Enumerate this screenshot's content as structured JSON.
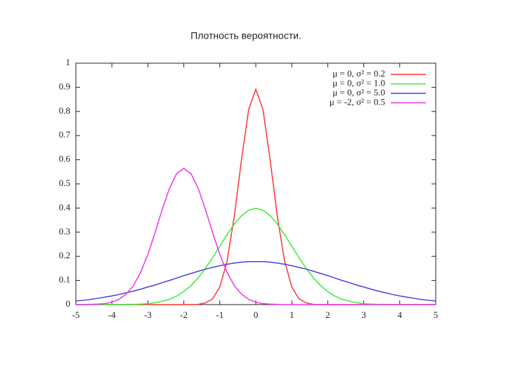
{
  "chart_data": {
    "type": "line",
    "title": "Плотность вероятности.",
    "x": [
      -5,
      -4.8,
      -4.6,
      -4.4,
      -4.2,
      -4,
      -3.8,
      -3.6,
      -3.4,
      -3.2,
      -3,
      -2.8,
      -2.6,
      -2.4,
      -2.2,
      -2,
      -1.8,
      -1.6,
      -1.4,
      -1.2,
      -1,
      -0.8,
      -0.6,
      -0.4,
      -0.2,
      0,
      0.2,
      0.4,
      0.6,
      0.8,
      1,
      1.2,
      1.4,
      1.6,
      1.8,
      2,
      2.2,
      2.4,
      2.6,
      2.8,
      3,
      3.2,
      3.4,
      3.6,
      3.8,
      4,
      4.2,
      4.4,
      4.6,
      4.8,
      5
    ],
    "series": [
      {
        "name": "μ = 0, σ² = 0.2",
        "color": "#ff3333",
        "values": [
          0,
          0,
          0,
          0,
          0,
          0,
          0,
          0,
          0,
          0,
          0,
          0,
          0,
          0,
          0,
          0,
          0,
          0.001,
          0.007,
          0.024,
          0.073,
          0.18,
          0.363,
          0.598,
          0.807,
          0.892,
          0.807,
          0.598,
          0.363,
          0.18,
          0.073,
          0.024,
          0.007,
          0.001,
          0,
          0,
          0,
          0,
          0,
          0,
          0,
          0,
          0,
          0,
          0,
          0,
          0,
          0,
          0,
          0,
          0
        ]
      },
      {
        "name": "μ = 0, σ² = 1.0",
        "color": "#33ee33",
        "values": [
          0,
          0,
          0,
          0,
          0,
          0,
          0,
          0.001,
          0.001,
          0.002,
          0.004,
          0.008,
          0.014,
          0.022,
          0.035,
          0.054,
          0.079,
          0.111,
          0.15,
          0.194,
          0.242,
          0.29,
          0.333,
          0.368,
          0.391,
          0.399,
          0.391,
          0.368,
          0.333,
          0.29,
          0.242,
          0.194,
          0.15,
          0.111,
          0.079,
          0.054,
          0.035,
          0.022,
          0.014,
          0.008,
          0.004,
          0.002,
          0.001,
          0.001,
          0,
          0,
          0,
          0,
          0,
          0,
          0
        ]
      },
      {
        "name": "μ = 0, σ² = 5.0",
        "color": "#4444dd",
        "values": [
          0.015,
          0.018,
          0.021,
          0.026,
          0.031,
          0.036,
          0.042,
          0.049,
          0.056,
          0.064,
          0.073,
          0.081,
          0.091,
          0.1,
          0.11,
          0.12,
          0.129,
          0.138,
          0.147,
          0.154,
          0.161,
          0.167,
          0.172,
          0.176,
          0.178,
          0.178,
          0.178,
          0.176,
          0.172,
          0.167,
          0.161,
          0.154,
          0.147,
          0.138,
          0.129,
          0.12,
          0.11,
          0.1,
          0.091,
          0.081,
          0.073,
          0.064,
          0.056,
          0.049,
          0.042,
          0.036,
          0.031,
          0.026,
          0.021,
          0.018,
          0.015
        ]
      },
      {
        "name": "μ = -2, σ² = 0.5",
        "color": "#ee33ee",
        "values": [
          0,
          0,
          0.001,
          0.002,
          0.004,
          0.01,
          0.022,
          0.044,
          0.079,
          0.134,
          0.208,
          0.298,
          0.394,
          0.481,
          0.542,
          0.564,
          0.542,
          0.481,
          0.394,
          0.298,
          0.208,
          0.134,
          0.079,
          0.044,
          0.022,
          0.01,
          0.004,
          0.002,
          0.001,
          0,
          0,
          0,
          0,
          0,
          0,
          0,
          0,
          0,
          0,
          0,
          0,
          0,
          0,
          0,
          0,
          0,
          0,
          0,
          0,
          0,
          0
        ]
      }
    ],
    "xlim": [
      -5,
      5
    ],
    "xticks": [
      -5,
      -4,
      -3,
      -2,
      -1,
      0,
      1,
      2,
      3,
      4,
      5
    ],
    "ylim": [
      0,
      1
    ],
    "yticks": [
      0,
      0.1,
      0.2,
      0.3,
      0.4,
      0.5,
      0.6,
      0.7,
      0.8,
      0.9,
      1
    ]
  }
}
